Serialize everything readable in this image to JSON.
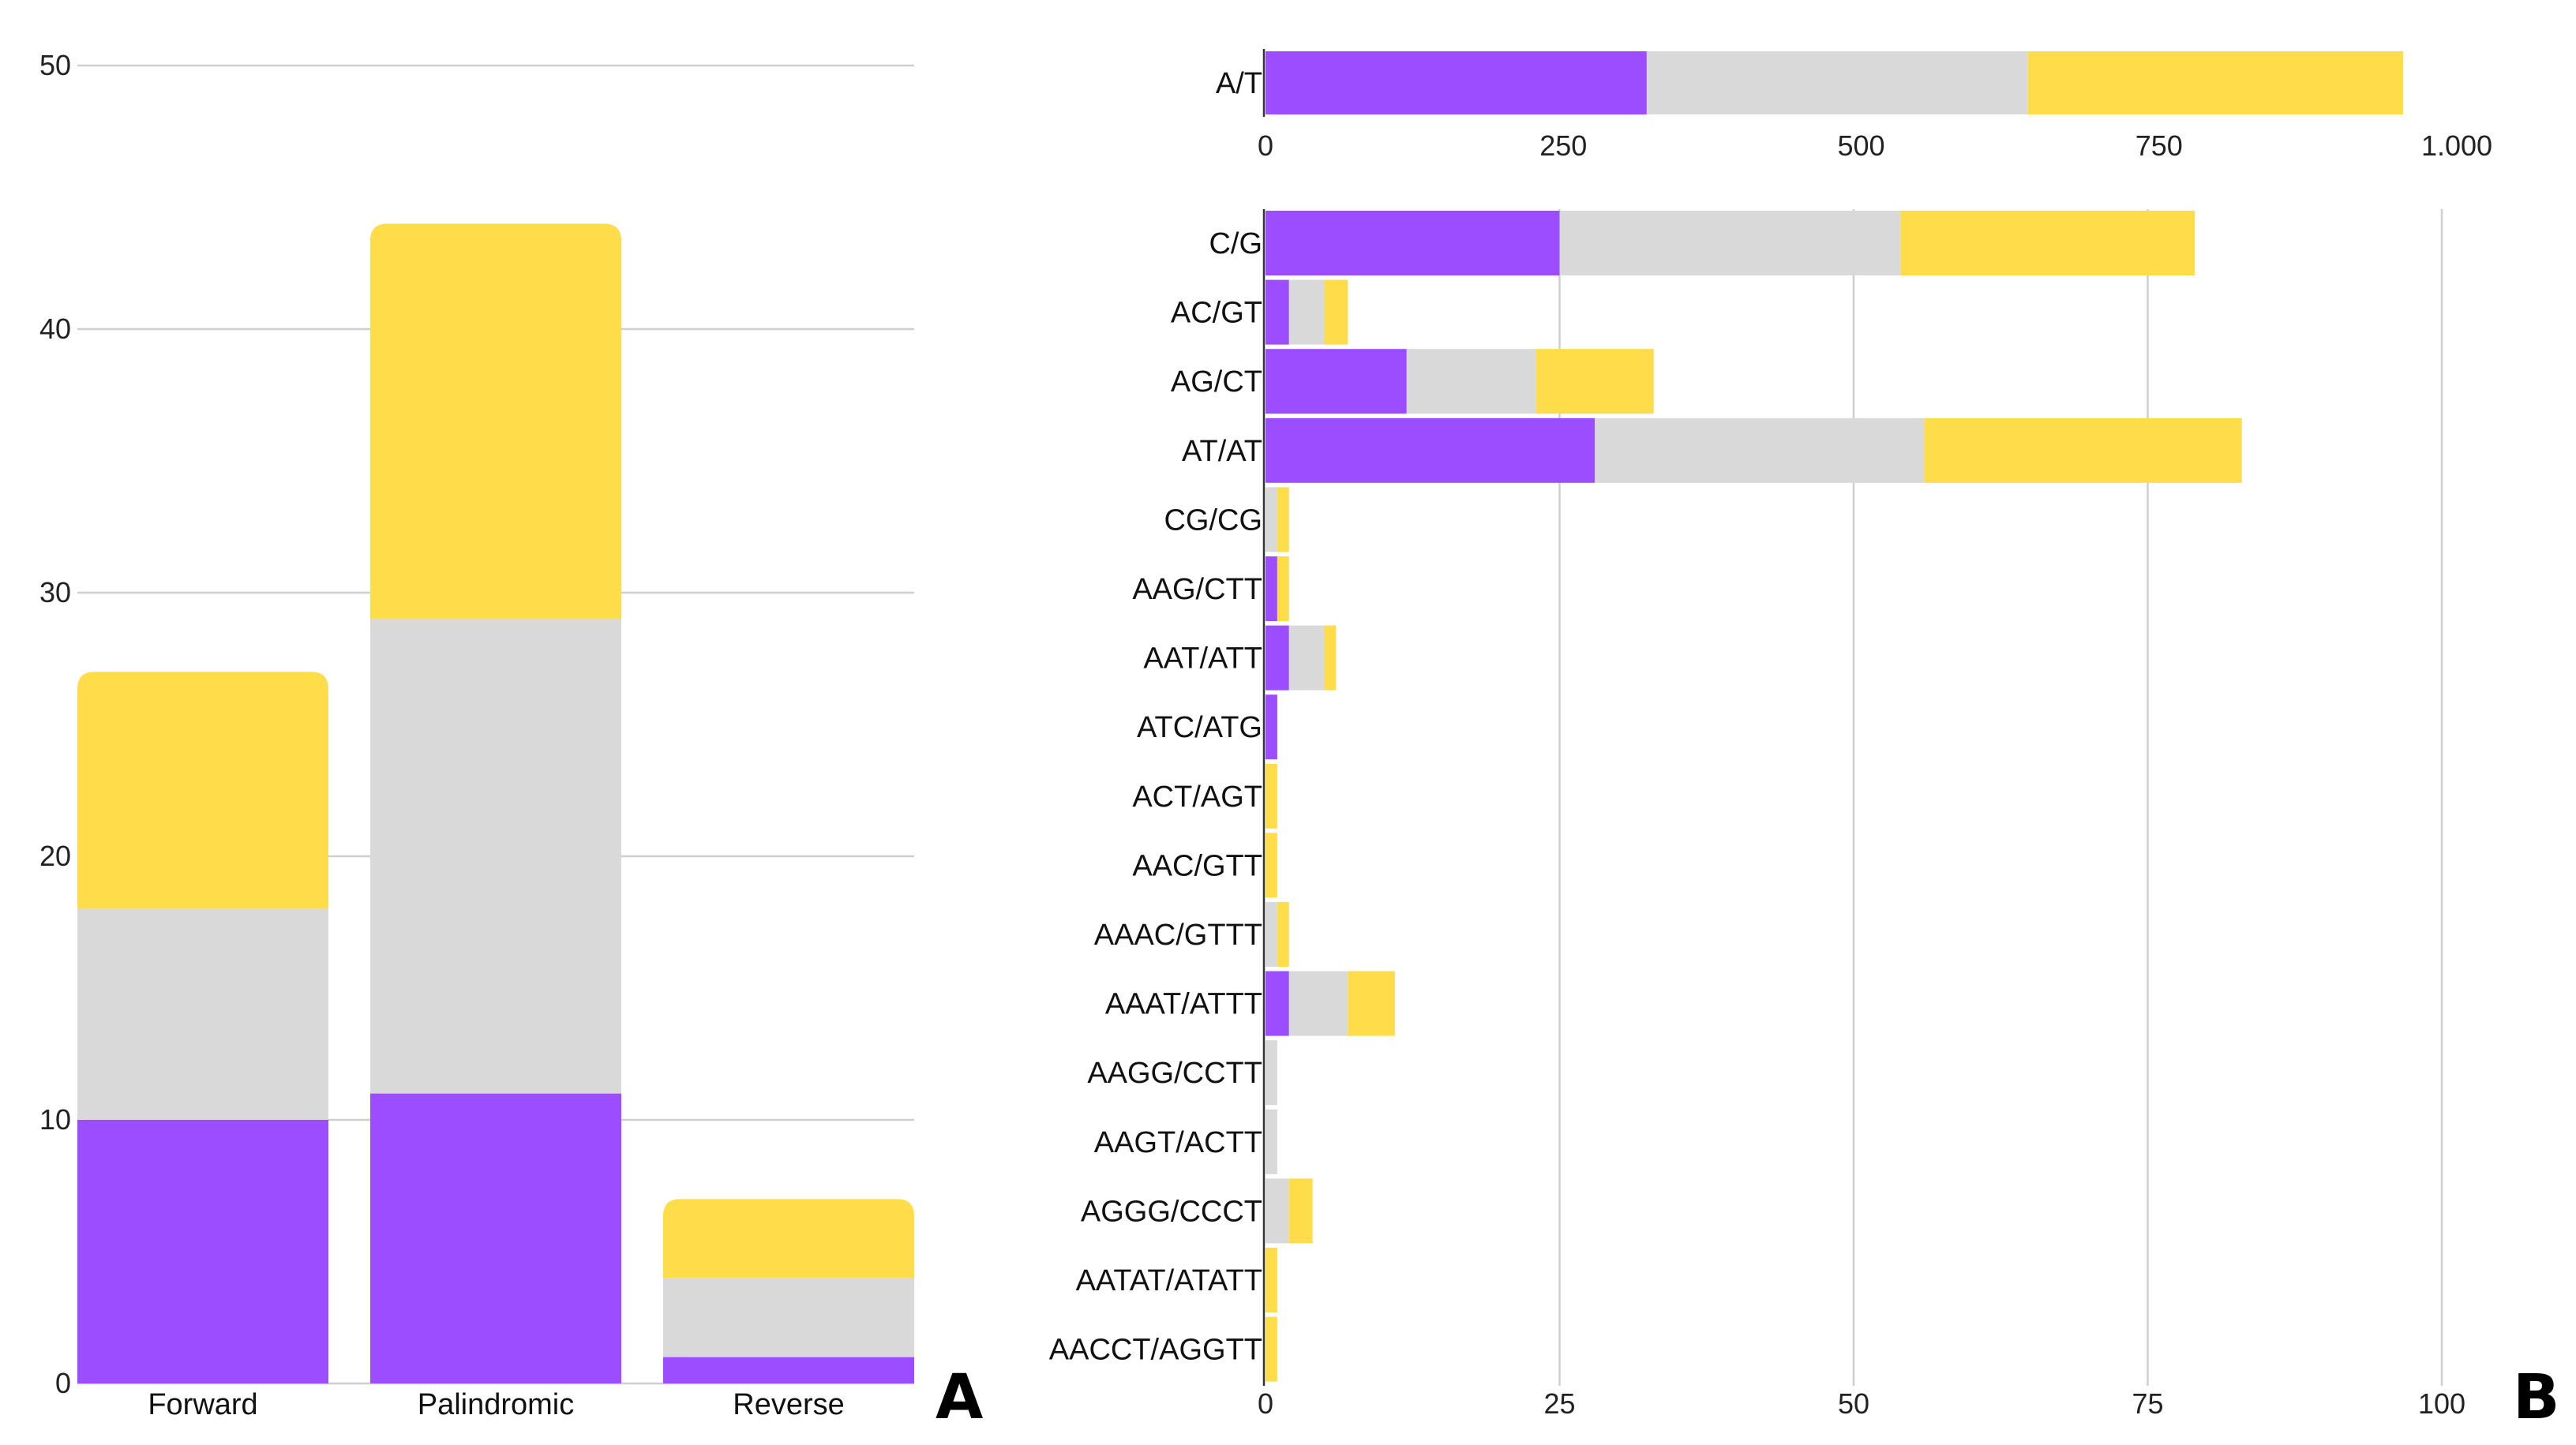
{
  "colors": {
    "purple": "#9b4dff",
    "gray": "#d9d9d9",
    "yellow": "#ffdc4a"
  },
  "chart_data": [
    {
      "panel_label": "A",
      "type": "bar",
      "orientation": "vertical",
      "stacked": true,
      "categories": [
        "Forward",
        "Palindromic",
        "Reverse"
      ],
      "series": [
        {
          "name": "purple",
          "color": "#9b4dff",
          "values": [
            10,
            11,
            1
          ]
        },
        {
          "name": "gray",
          "color": "#d9d9d9",
          "values": [
            8,
            18,
            3
          ]
        },
        {
          "name": "yellow",
          "color": "#ffdc4a",
          "values": [
            9,
            15,
            3
          ]
        }
      ],
      "ylim": [
        0,
        50
      ],
      "yticks": [
        "0",
        "10",
        "20",
        "30",
        "40",
        "50"
      ],
      "grid": true
    },
    {
      "panel_label": "B",
      "type": "bar",
      "orientation": "horizontal",
      "stacked": true,
      "subplots": [
        {
          "categories": [
            "A/T"
          ],
          "series": [
            {
              "name": "purple",
              "color": "#9b4dff",
              "values": [
                320
              ]
            },
            {
              "name": "gray",
              "color": "#d9d9d9",
              "values": [
                320
              ]
            },
            {
              "name": "yellow",
              "color": "#ffdc4a",
              "values": [
                315
              ]
            }
          ],
          "xlim": [
            0,
            1000
          ],
          "xticks": [
            "0",
            "250",
            "500",
            "750",
            "1.000"
          ],
          "grid": false
        },
        {
          "categories": [
            "C/G",
            "AC/GT",
            "AG/CT",
            "AT/AT",
            "CG/CG",
            "AAG/CTT",
            "AAT/ATT",
            "ATC/ATG",
            "ACT/AGT",
            "AAC/GTT",
            "AAAC/GTTT",
            "AAAT/ATTT",
            "AAGG/CCTT",
            "AAGT/ACTT",
            "AGGG/CCCT",
            "AATAT/ATATT",
            "AACCT/AGGTT"
          ],
          "series": [
            {
              "name": "purple",
              "color": "#9b4dff",
              "values": [
                25,
                2,
                12,
                28,
                0,
                1,
                2,
                1,
                0,
                0,
                0,
                2,
                0,
                0,
                0,
                0,
                0
              ]
            },
            {
              "name": "gray",
              "color": "#d9d9d9",
              "values": [
                29,
                3,
                11,
                28,
                1,
                0,
                3,
                0,
                0,
                0,
                1,
                5,
                1,
                1,
                2,
                0,
                0
              ]
            },
            {
              "name": "yellow",
              "color": "#ffdc4a",
              "values": [
                25,
                2,
                10,
                27,
                1,
                1,
                1,
                0,
                1,
                1,
                1,
                4,
                0,
                0,
                2,
                1,
                1
              ]
            }
          ],
          "xlim": [
            0,
            100
          ],
          "xticks": [
            "0",
            "25",
            "50",
            "75",
            "100"
          ],
          "grid": true
        }
      ]
    }
  ]
}
